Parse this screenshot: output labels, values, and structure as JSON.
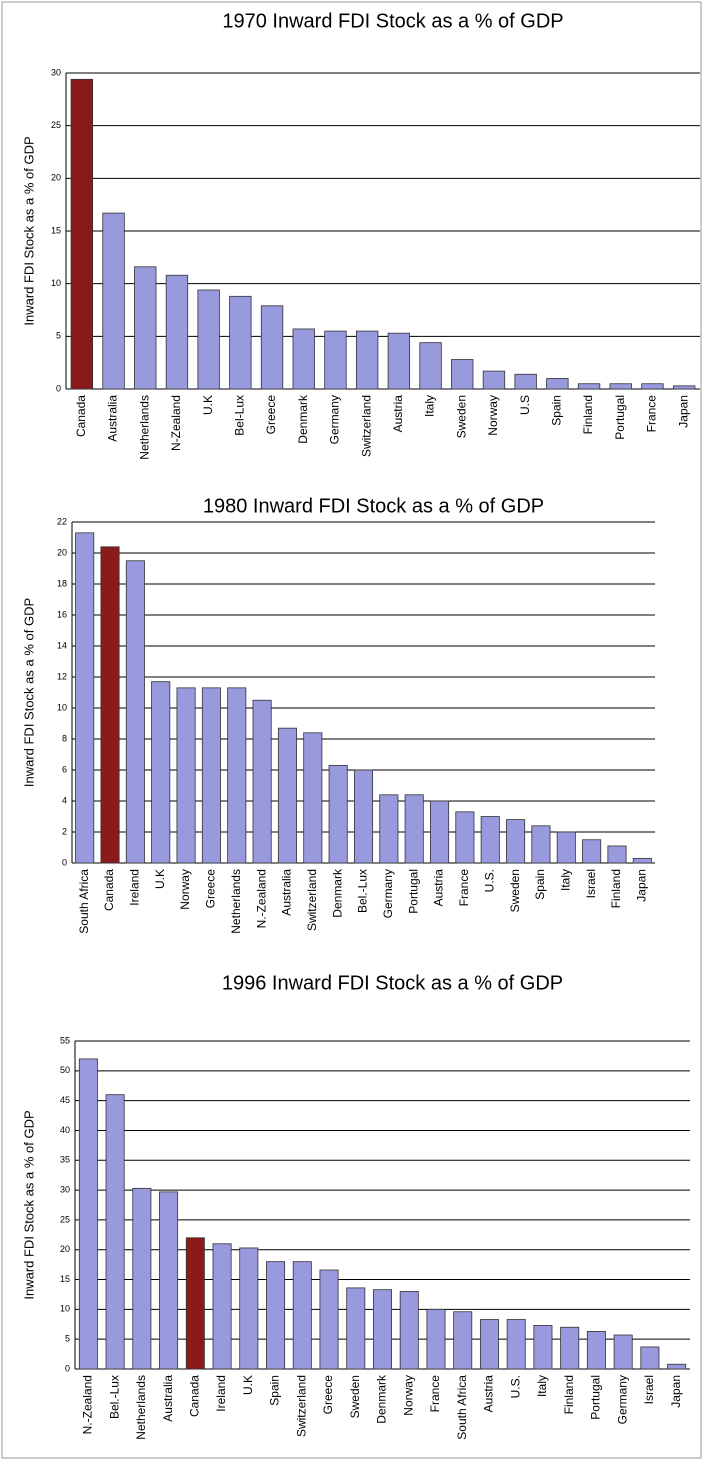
{
  "chart_data": [
    {
      "type": "bar",
      "title": "1970 Inward FDI Stock as a % of GDP",
      "y_label": "Inward FDI Stock as a % of GDP",
      "categories": [
        "Canada",
        "Australia",
        "Netherlands",
        "N-Zealand",
        "U.K",
        "Bel-Lux",
        "Greece",
        "Denmark",
        "Germany",
        "Switzerland",
        "Austria",
        "Italy",
        "Sweden",
        "Norway",
        "U.S",
        "Spain",
        "Finland",
        "Portugal",
        "France",
        "Japan"
      ],
      "values": [
        29.4,
        16.7,
        11.6,
        10.8,
        9.4,
        8.8,
        7.9,
        5.7,
        5.5,
        5.5,
        5.3,
        4.4,
        2.8,
        1.7,
        1.4,
        1.0,
        0.5,
        0.5,
        0.5,
        0.3
      ],
      "colors": [
        "#8b1a1a",
        "#9999dd",
        "#9999dd",
        "#9999dd",
        "#9999dd",
        "#9999dd",
        "#9999dd",
        "#9999dd",
        "#9999dd",
        "#9999dd",
        "#9999dd",
        "#9999dd",
        "#9999dd",
        "#9999dd",
        "#9999dd",
        "#9999dd",
        "#9999dd",
        "#9999dd",
        "#9999dd",
        "#9999dd"
      ],
      "ylim": [
        0,
        30
      ],
      "yticks": [
        0,
        5,
        10,
        15,
        20,
        25,
        30
      ],
      "grid": true
    },
    {
      "type": "bar",
      "title": "1980 Inward FDI Stock as a % of GDP",
      "y_label": "Inward FDI Stock as a % of GDP",
      "categories": [
        "South Africa",
        "Canada",
        "Ireland",
        "U.K",
        "Norway",
        "Greece",
        "Netherlands",
        "N.-Zealand",
        "Australia",
        "Switzerland",
        "Denmark",
        "Bel.-Lux",
        "Germany",
        "Portugal",
        "Austria",
        "France",
        "U.S.",
        "Sweden",
        "Spain",
        "Italy",
        "Israel",
        "Finland",
        "Japan"
      ],
      "values": [
        21.3,
        20.4,
        19.5,
        11.7,
        11.3,
        11.3,
        11.3,
        10.5,
        8.7,
        8.4,
        6.3,
        6.0,
        4.4,
        4.4,
        4.0,
        3.3,
        3.0,
        2.8,
        2.4,
        2.0,
        1.5,
        1.1,
        0.3
      ],
      "colors": [
        "#9999dd",
        "#8b1a1a",
        "#9999dd",
        "#9999dd",
        "#9999dd",
        "#9999dd",
        "#9999dd",
        "#9999dd",
        "#9999dd",
        "#9999dd",
        "#9999dd",
        "#9999dd",
        "#9999dd",
        "#9999dd",
        "#9999dd",
        "#9999dd",
        "#9999dd",
        "#9999dd",
        "#9999dd",
        "#9999dd",
        "#9999dd",
        "#9999dd",
        "#9999dd"
      ],
      "ylim": [
        0,
        22
      ],
      "yticks": [
        0,
        2,
        4,
        6,
        8,
        10,
        12,
        14,
        16,
        18,
        20,
        22
      ],
      "grid": true
    },
    {
      "type": "bar",
      "title": "1996 Inward FDI Stock as a % of GDP",
      "y_label": "Inward FDI Stock as a % of GDP",
      "categories": [
        "N.-Zealand",
        "Bel.-Lux",
        "Netherlands",
        "Australia",
        "Canada",
        "Ireland",
        "U.K",
        "Spain",
        "Switzerland",
        "Greece",
        "Sweden",
        "Denmark",
        "Norway",
        "France",
        "South Africa",
        "Austria",
        "U.S.",
        "Italy",
        "Finland",
        "Portugal",
        "Germany",
        "Israel",
        "Japan"
      ],
      "values": [
        52,
        46,
        30.3,
        29.7,
        22,
        21,
        20.3,
        18,
        18,
        16.6,
        13.6,
        13.3,
        13,
        10,
        9.6,
        8.3,
        8.3,
        7.3,
        7,
        6.3,
        5.7,
        3.7,
        0.8
      ],
      "colors": [
        "#9999dd",
        "#9999dd",
        "#9999dd",
        "#9999dd",
        "#8b1a1a",
        "#9999dd",
        "#9999dd",
        "#9999dd",
        "#9999dd",
        "#9999dd",
        "#9999dd",
        "#9999dd",
        "#9999dd",
        "#9999dd",
        "#9999dd",
        "#9999dd",
        "#9999dd",
        "#9999dd",
        "#9999dd",
        "#9999dd",
        "#9999dd",
        "#9999dd",
        "#9999dd"
      ],
      "ylim": [
        0,
        55
      ],
      "yticks": [
        0,
        5,
        10,
        15,
        20,
        25,
        30,
        35,
        40,
        45,
        50,
        55
      ],
      "grid": true
    }
  ]
}
